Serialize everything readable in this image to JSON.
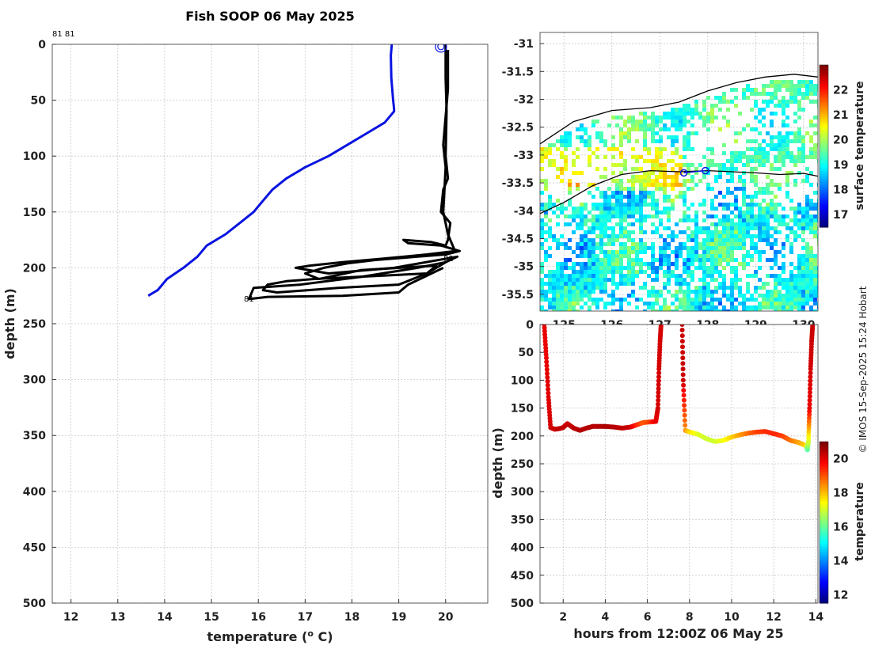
{
  "chart_data": [
    {
      "type": "line",
      "title": "Fish SOOP 06 May 2025",
      "xlabel": "temperature (",
      "xlabel_sup": "o",
      "xlabel_end": " C)",
      "ylabel": "depth (m)",
      "xlim": [
        11.6,
        20.9
      ],
      "ylim": [
        500,
        0
      ],
      "xticks": [
        "12",
        "13",
        "14",
        "15",
        "16",
        "17",
        "18",
        "19",
        "20"
      ],
      "yticks": [
        "0",
        "50",
        "100",
        "150",
        "200",
        "250",
        "300",
        "350",
        "400",
        "450",
        "500"
      ],
      "annotations": [
        "81 81",
        "81",
        "82"
      ],
      "series": [
        {
          "color": "#0a14e0",
          "x": [
            18.85,
            18.83,
            18.84,
            18.88,
            18.9,
            18.9,
            18.7,
            18.3,
            17.9,
            17.5,
            17.0,
            16.6,
            16.3,
            16.1,
            15.9,
            15.6,
            15.3,
            14.9,
            14.7,
            14.4,
            14.05,
            13.85,
            13.65
          ],
          "y": [
            0,
            10,
            30,
            50,
            58,
            60,
            70,
            80,
            90,
            100,
            110,
            120,
            130,
            140,
            150,
            160,
            170,
            180,
            190,
            200,
            210,
            220,
            225
          ]
        },
        {
          "color": "#000000",
          "x": [
            20.0,
            20.0,
            20.02,
            20.0,
            20.05,
            19.95,
            19.9,
            20.1,
            20.05,
            20.0,
            19.7,
            19.1,
            19.2,
            19.9,
            20.3,
            20.0,
            19.4,
            18.5,
            17.9,
            17.4,
            17.0,
            17.3,
            18.2,
            19.8,
            19.6,
            17.2,
            16.6,
            16.2,
            16.1,
            16.4,
            17.7,
            19.0,
            19.6,
            20.0
          ],
          "y": [
            0,
            30,
            60,
            100,
            120,
            130,
            150,
            160,
            175,
            180,
            177,
            175,
            178,
            180,
            185,
            188,
            190,
            193,
            196,
            200,
            205,
            210,
            202,
            198,
            205,
            210,
            212,
            215,
            220,
            222,
            218,
            215,
            205,
            195
          ]
        },
        {
          "color": "#000000",
          "x": [
            20.05,
            20.05,
            19.95,
            20.0,
            19.95,
            20.05,
            20.2,
            19.6,
            18.6,
            17.8,
            17.1,
            16.8,
            17.5,
            18.9,
            20.25,
            20.0,
            19.4,
            18.2,
            16.9,
            15.9,
            15.8,
            16.2,
            17.8,
            19.0,
            19.2,
            19.95
          ],
          "y": [
            5,
            40,
            90,
            110,
            150,
            170,
            185,
            188,
            192,
            195,
            198,
            200,
            205,
            200,
            190,
            195,
            200,
            208,
            215,
            218,
            228,
            226,
            225,
            222,
            215,
            200
          ]
        }
      ],
      "markers": [
        {
          "x": 19.9,
          "y": 2,
          "color": "#0a14e0"
        }
      ]
    },
    {
      "type": "heatmap",
      "colorbar_label": "surface temperature",
      "colorbar_ticks": [
        "17",
        "18",
        "19",
        "20",
        "21",
        "22"
      ],
      "colorbar_range": [
        16.5,
        23.0
      ],
      "xlim": [
        124.5,
        130.3
      ],
      "ylim": [
        -35.8,
        -30.8
      ],
      "xticks": [
        "125",
        "126",
        "127",
        "128",
        "129",
        "130"
      ],
      "yticks": [
        "-31",
        "-31.5",
        "-32",
        "-32.5",
        "-33",
        "-33.5",
        "-34",
        "-34.5",
        "-35",
        "-35.5"
      ],
      "coastline": {
        "lon": [
          124.5,
          125.2,
          126.0,
          126.8,
          127.4,
          128.0,
          128.6,
          129.2,
          129.8,
          130.3
        ],
        "lat": [
          -32.8,
          -32.4,
          -32.2,
          -32.15,
          -32.05,
          -31.85,
          -31.7,
          -31.6,
          -31.55,
          -31.6
        ]
      },
      "track": {
        "lon": [
          124.5,
          125.0,
          125.6,
          126.2,
          126.8,
          127.4,
          128.0,
          128.5,
          129.0,
          129.5,
          130.0,
          130.3
        ],
        "lat": [
          -34.05,
          -33.85,
          -33.55,
          -33.35,
          -33.28,
          -33.3,
          -33.28,
          -33.3,
          -33.32,
          -33.35,
          -33.33,
          -33.38
        ]
      },
      "markers": [
        {
          "lon": 127.5,
          "lat": -33.32
        },
        {
          "lon": 127.95,
          "lat": -33.28
        }
      ]
    },
    {
      "type": "scatter",
      "xlabel": "hours from 12:00Z 06 May 25",
      "ylabel": "depth (m)",
      "colorbar_label": "temperature",
      "colorbar_ticks": [
        "12",
        "14",
        "16",
        "18",
        "20"
      ],
      "colorbar_range": [
        11.5,
        21.0
      ],
      "xlim": [
        0.9,
        14.1
      ],
      "ylim": [
        500,
        0
      ],
      "xticks": [
        "2",
        "4",
        "6",
        "8",
        "10",
        "12",
        "14"
      ],
      "yticks": [
        "0",
        "50",
        "100",
        "150",
        "200",
        "250",
        "300",
        "350",
        "400",
        "450",
        "500"
      ],
      "x": [
        1.1,
        1.2,
        1.3,
        1.4,
        1.6,
        1.8,
        2.0,
        2.2,
        2.5,
        2.8,
        3.1,
        3.4,
        3.7,
        4.0,
        4.4,
        4.8,
        5.2,
        5.5,
        5.8,
        6.1,
        6.4,
        6.5,
        6.55,
        6.6,
        6.65,
        7.65,
        7.7,
        7.8,
        8.0,
        8.4,
        8.8,
        9.2,
        9.6,
        10.0,
        10.4,
        10.8,
        11.2,
        11.6,
        12.0,
        12.4,
        12.8,
        13.2,
        13.55,
        13.6,
        13.65,
        13.7,
        13.75,
        13.8,
        13.85
      ],
      "y": [
        0,
        60,
        130,
        185,
        188,
        187,
        185,
        178,
        186,
        190,
        186,
        183,
        183,
        183,
        184,
        186,
        184,
        180,
        176,
        175,
        174,
        150,
        80,
        30,
        0,
        0,
        100,
        190,
        193,
        197,
        205,
        210,
        208,
        202,
        198,
        195,
        193,
        192,
        196,
        200,
        208,
        212,
        218,
        225,
        210,
        150,
        80,
        30,
        0
      ],
      "temperature": [
        20.0,
        20.0,
        20.1,
        20.2,
        20.3,
        20.4,
        20.4,
        20.3,
        20.4,
        20.5,
        20.5,
        20.5,
        20.5,
        20.6,
        20.5,
        20.4,
        20.3,
        19.5,
        19.0,
        19.2,
        20.0,
        20.2,
        20.2,
        20.2,
        20.2,
        20.3,
        20.3,
        18.5,
        17.8,
        17.2,
        17.0,
        17.0,
        17.3,
        17.8,
        18.3,
        18.8,
        19.2,
        19.4,
        19.5,
        19.3,
        18.8,
        18.3,
        17.8,
        15.8,
        17.0,
        20.0,
        20.2,
        20.3,
        20.3
      ]
    }
  ],
  "credit": "© IMOS 15-Sep-2025 15:24 Hobart"
}
